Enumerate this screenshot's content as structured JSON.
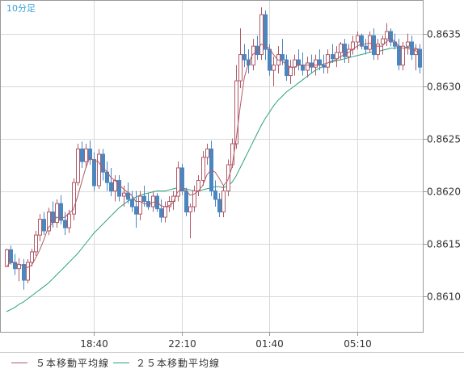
{
  "chart_data": {
    "type": "candlestick",
    "timeframe_label": "10分足",
    "y_ticks": [
      "0.8635",
      "0.8630",
      "0.8625",
      "0.8620",
      "0.8615",
      "0.8610"
    ],
    "x_ticks": [
      "18:40",
      "22:10",
      "01:40",
      "05:10"
    ],
    "ylim": [
      0.86065,
      0.86382
    ],
    "grid": true,
    "colors": {
      "up": "#ffffff",
      "down": "#4a86c0",
      "ma5": "#b05a68",
      "ma25": "#2aa37a"
    },
    "series": [
      {
        "name": "５本移動平均線",
        "color": "#b05a68"
      },
      {
        "name": "２５本移動平均線",
        "color": "#2aa37a"
      }
    ],
    "candles": [
      [
        0.86128,
        0.86145,
        0.86128,
        0.86144
      ],
      [
        0.86144,
        0.86148,
        0.8613,
        0.86132
      ],
      [
        0.86132,
        0.8614,
        0.8612,
        0.86126
      ],
      [
        0.86126,
        0.86136,
        0.86114,
        0.8613
      ],
      [
        0.8613,
        0.86135,
        0.86106,
        0.86115
      ],
      [
        0.86115,
        0.86135,
        0.86112,
        0.86132
      ],
      [
        0.86132,
        0.86145,
        0.86128,
        0.86142
      ],
      [
        0.86142,
        0.86162,
        0.86138,
        0.86158
      ],
      [
        0.86158,
        0.86178,
        0.86152,
        0.86173
      ],
      [
        0.86173,
        0.8618,
        0.86158,
        0.86162
      ],
      [
        0.86162,
        0.86184,
        0.86158,
        0.8618
      ],
      [
        0.8618,
        0.8619,
        0.86165,
        0.8617
      ],
      [
        0.8617,
        0.86192,
        0.86165,
        0.86188
      ],
      [
        0.86188,
        0.86196,
        0.86168,
        0.86172
      ],
      [
        0.86172,
        0.8618,
        0.86158,
        0.86165
      ],
      [
        0.86165,
        0.86182,
        0.8616,
        0.86178
      ],
      [
        0.86178,
        0.86212,
        0.86172,
        0.86208
      ],
      [
        0.86208,
        0.86245,
        0.86205,
        0.8624
      ],
      [
        0.8624,
        0.86247,
        0.86222,
        0.86228
      ],
      [
        0.86228,
        0.86245,
        0.86222,
        0.8624
      ],
      [
        0.8624,
        0.86248,
        0.86225,
        0.8623
      ],
      [
        0.8623,
        0.86237,
        0.862,
        0.86205
      ],
      [
        0.86205,
        0.8624,
        0.86202,
        0.86235
      ],
      [
        0.86235,
        0.8624,
        0.8621,
        0.86218
      ],
      [
        0.86218,
        0.86228,
        0.862,
        0.86208
      ],
      [
        0.86208,
        0.86222,
        0.86195,
        0.862
      ],
      [
        0.862,
        0.86215,
        0.8619,
        0.8621
      ],
      [
        0.8621,
        0.86215,
        0.8619,
        0.86195
      ],
      [
        0.86195,
        0.86205,
        0.86185,
        0.86198
      ],
      [
        0.86198,
        0.86208,
        0.86188,
        0.86192
      ],
      [
        0.86192,
        0.862,
        0.8618,
        0.86185
      ],
      [
        0.86185,
        0.862,
        0.86165,
        0.86178
      ],
      [
        0.86178,
        0.862,
        0.86172,
        0.86195
      ],
      [
        0.86195,
        0.86205,
        0.86185,
        0.8619
      ],
      [
        0.8619,
        0.86198,
        0.86182,
        0.86185
      ],
      [
        0.86185,
        0.862,
        0.8618,
        0.86195
      ],
      [
        0.86195,
        0.86198,
        0.8618,
        0.86183
      ],
      [
        0.86183,
        0.86192,
        0.8617,
        0.86175
      ],
      [
        0.86175,
        0.8619,
        0.8617,
        0.86185
      ],
      [
        0.86185,
        0.86195,
        0.8618,
        0.8619
      ],
      [
        0.8619,
        0.862,
        0.86182,
        0.86195
      ],
      [
        0.86195,
        0.86228,
        0.8619,
        0.86222
      ],
      [
        0.86222,
        0.86226,
        0.86196,
        0.862
      ],
      [
        0.862,
        0.86203,
        0.86176,
        0.8618
      ],
      [
        0.8618,
        0.86188,
        0.86155,
        0.86185
      ],
      [
        0.86185,
        0.86205,
        0.8618,
        0.862
      ],
      [
        0.862,
        0.86215,
        0.86195,
        0.8621
      ],
      [
        0.8621,
        0.86238,
        0.86205,
        0.86232
      ],
      [
        0.86232,
        0.86245,
        0.86225,
        0.8624
      ],
      [
        0.8624,
        0.86248,
        0.86195,
        0.862
      ],
      [
        0.862,
        0.8621,
        0.86185,
        0.86192
      ],
      [
        0.86192,
        0.86198,
        0.86175,
        0.8618
      ],
      [
        0.8618,
        0.86205,
        0.86175,
        0.862
      ],
      [
        0.862,
        0.8623,
        0.86195,
        0.86225
      ],
      [
        0.86225,
        0.8625,
        0.86222,
        0.86245
      ],
      [
        0.86245,
        0.8632,
        0.8624,
        0.86305
      ],
      [
        0.86305,
        0.86355,
        0.86298,
        0.8633
      ],
      [
        0.8633,
        0.8634,
        0.86318,
        0.86325
      ],
      [
        0.86325,
        0.86335,
        0.86312,
        0.8632
      ],
      [
        0.8632,
        0.86345,
        0.86315,
        0.86338
      ],
      [
        0.86338,
        0.86348,
        0.86325,
        0.8633
      ],
      [
        0.8633,
        0.86375,
        0.86325,
        0.86368
      ],
      [
        0.86368,
        0.86372,
        0.86325,
        0.86335
      ],
      [
        0.86335,
        0.8634,
        0.8631,
        0.86315
      ],
      [
        0.86315,
        0.86328,
        0.863,
        0.8632
      ],
      [
        0.8632,
        0.86338,
        0.86312,
        0.8633
      ],
      [
        0.8633,
        0.86345,
        0.8632,
        0.86325
      ],
      [
        0.86325,
        0.8633,
        0.86305,
        0.8631
      ],
      [
        0.8631,
        0.86325,
        0.86302,
        0.86318
      ],
      [
        0.86318,
        0.8633,
        0.8631,
        0.86325
      ],
      [
        0.86325,
        0.86335,
        0.86315,
        0.8632
      ],
      [
        0.8632,
        0.86332,
        0.8631,
        0.86315
      ],
      [
        0.86315,
        0.86328,
        0.86308,
        0.86322
      ],
      [
        0.86322,
        0.8633,
        0.86312,
        0.86318
      ],
      [
        0.86318,
        0.8633,
        0.8631,
        0.86325
      ],
      [
        0.86325,
        0.86335,
        0.86315,
        0.8632
      ],
      [
        0.8632,
        0.8633,
        0.86312,
        0.86318
      ],
      [
        0.86318,
        0.86335,
        0.86312,
        0.8633
      ],
      [
        0.8633,
        0.8634,
        0.86322,
        0.86326
      ],
      [
        0.86326,
        0.86338,
        0.86318,
        0.86332
      ],
      [
        0.86332,
        0.86342,
        0.86325,
        0.8634
      ],
      [
        0.8634,
        0.86345,
        0.86322,
        0.86328
      ],
      [
        0.86328,
        0.8634,
        0.86322,
        0.86335
      ],
      [
        0.86335,
        0.86348,
        0.8633,
        0.86342
      ],
      [
        0.86342,
        0.86352,
        0.86335,
        0.86348
      ],
      [
        0.86348,
        0.8635,
        0.86335,
        0.86338
      ],
      [
        0.86338,
        0.86345,
        0.8633,
        0.86335
      ],
      [
        0.86335,
        0.86352,
        0.86332,
        0.86348
      ],
      [
        0.86348,
        0.86355,
        0.86325,
        0.8633
      ],
      [
        0.8633,
        0.86345,
        0.86325,
        0.8634
      ],
      [
        0.8634,
        0.86348,
        0.8633,
        0.86345
      ],
      [
        0.86345,
        0.8636,
        0.86338,
        0.86352
      ],
      [
        0.86352,
        0.86355,
        0.86338,
        0.86342
      ],
      [
        0.86342,
        0.8635,
        0.86335,
        0.86338
      ],
      [
        0.86338,
        0.86345,
        0.86315,
        0.8632
      ],
      [
        0.8632,
        0.86342,
        0.86315,
        0.86338
      ],
      [
        0.86338,
        0.8635,
        0.8633,
        0.86342
      ],
      [
        0.86342,
        0.86348,
        0.86325,
        0.8633
      ],
      [
        0.8633,
        0.8634,
        0.86315,
        0.86335
      ],
      [
        0.86335,
        0.8634,
        0.86312,
        0.86318
      ]
    ],
    "ma5": [
      0.86128,
      0.86132,
      0.86131,
      0.8613,
      0.86129,
      0.86127,
      0.86129,
      0.86136,
      0.86144,
      0.86154,
      0.86165,
      0.86169,
      0.86175,
      0.86174,
      0.86175,
      0.86179,
      0.86182,
      0.86194,
      0.86208,
      0.86222,
      0.86232,
      0.86229,
      0.86228,
      0.86222,
      0.86219,
      0.86213,
      0.8621,
      0.86206,
      0.86202,
      0.86199,
      0.86196,
      0.8619,
      0.8619,
      0.86188,
      0.86187,
      0.86189,
      0.8619,
      0.86186,
      0.86185,
      0.86186,
      0.86189,
      0.86199,
      0.86202,
      0.86201,
      0.86196,
      0.86197,
      0.862,
      0.86205,
      0.86215,
      0.8622,
      0.86218,
      0.86212,
      0.86205,
      0.8621,
      0.86222,
      0.86248,
      0.8628,
      0.86308,
      0.86322,
      0.8633,
      0.86333,
      0.8634,
      0.86338,
      0.86336,
      0.8633,
      0.86325,
      0.86324,
      0.86321,
      0.86318,
      0.86318,
      0.8632,
      0.8632,
      0.8632,
      0.8632,
      0.8632,
      0.8632,
      0.86321,
      0.86322,
      0.86324,
      0.86325,
      0.86328,
      0.8633,
      0.86332,
      0.86335,
      0.86338,
      0.8634,
      0.8634,
      0.86341,
      0.86339,
      0.86338,
      0.86338,
      0.86342,
      0.86345,
      0.86343,
      0.86338,
      0.86336,
      0.86336,
      0.86335,
      0.86334,
      0.8633
    ],
    "ma25": [
      0.86085,
      0.86087,
      0.86089,
      0.86092,
      0.86094,
      0.86097,
      0.861,
      0.86103,
      0.86106,
      0.86109,
      0.86112,
      0.86116,
      0.8612,
      0.86124,
      0.86128,
      0.86132,
      0.86136,
      0.8614,
      0.86145,
      0.8615,
      0.86155,
      0.8616,
      0.86164,
      0.86168,
      0.86172,
      0.86176,
      0.8618,
      0.86184,
      0.86187,
      0.8619,
      0.86192,
      0.86194,
      0.86196,
      0.86197,
      0.86198,
      0.86199,
      0.862,
      0.862,
      0.862,
      0.86201,
      0.86202,
      0.86203,
      0.86203,
      0.86202,
      0.86201,
      0.862,
      0.862,
      0.86201,
      0.86202,
      0.86203,
      0.86204,
      0.86204,
      0.86203,
      0.86205,
      0.86208,
      0.86214,
      0.86222,
      0.8623,
      0.86238,
      0.86246,
      0.86254,
      0.86262,
      0.86269,
      0.86275,
      0.86281,
      0.86286,
      0.8629,
      0.86294,
      0.86297,
      0.863,
      0.86303,
      0.86306,
      0.86309,
      0.86312,
      0.86315,
      0.86317,
      0.86319,
      0.86321,
      0.86323,
      0.86324,
      0.86325,
      0.86326,
      0.86327,
      0.86328,
      0.86329,
      0.8633,
      0.86331,
      0.86332,
      0.86333,
      0.86333,
      0.86334,
      0.86335,
      0.86336,
      0.86336,
      0.86337,
      0.86337,
      0.86337,
      0.86337,
      0.86336,
      0.86335
    ]
  }
}
